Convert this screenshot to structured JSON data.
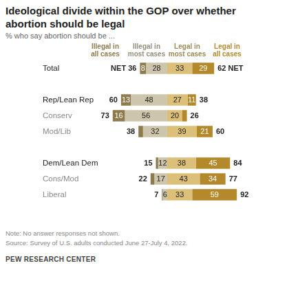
{
  "chart_data": {
    "type": "bar",
    "title": "Ideological divide within the GOP over whether abortion should be legal",
    "subtitle": "% who say abortion should be ...",
    "note": "Note: No answer responses not shown.",
    "source": "Source: Survey of U.S. adults conducted June 27-July 4, 2022.",
    "credit": "PEW RESEARCH CENTER",
    "orientation": "horizontal",
    "stacked": true,
    "grid": false,
    "legend": "top",
    "data_labels": true,
    "tick_labels": "y",
    "xlim": [
      -80,
      100
    ],
    "categories": [
      "Total",
      null,
      "Rep/Lean Rep",
      "Conserv",
      "Mod/Lib",
      null,
      "Dem/Lean Dem",
      "Cons/Mod",
      "Liberal"
    ],
    "series": [
      {
        "name": "Illegal in all cases",
        "color": "#8d7b4c",
        "values": [
          8,
          null,
          13,
          16,
          6,
          null,
          3,
          5,
          1
        ],
        "value_labels": [
          "8",
          null,
          "13",
          "16",
          null,
          null,
          null,
          null,
          null
        ]
      },
      {
        "name": "Illegal in most cases",
        "color": "#cdc5ac",
        "values": [
          28,
          null,
          48,
          56,
          32,
          null,
          12,
          17,
          6
        ],
        "value_labels": [
          "28",
          null,
          "48",
          "56",
          "32",
          null,
          "12",
          "17",
          "6"
        ]
      },
      {
        "name": "Legal in most cases",
        "color": "#dcbf78",
        "values": [
          33,
          null,
          27,
          20,
          39,
          null,
          38,
          43,
          33
        ],
        "value_labels": [
          "33",
          null,
          "27",
          "20",
          "39",
          null,
          "38",
          "43",
          "33"
        ]
      },
      {
        "name": "Legal in all cases",
        "color": "#b3892c",
        "values": [
          29,
          null,
          11,
          6,
          21,
          null,
          45,
          34,
          59
        ],
        "value_labels": [
          "29",
          null,
          "11",
          null,
          "21",
          null,
          "45",
          "34",
          "59"
        ]
      }
    ],
    "net_illegal": {
      "values": [
        36,
        null,
        60,
        73,
        38,
        null,
        15,
        22,
        7
      ],
      "value_labels": [
        "NET 36",
        null,
        "60",
        "73",
        "38",
        null,
        "15",
        "22",
        "7"
      ]
    },
    "net_legal": {
      "values": [
        62,
        null,
        38,
        26,
        60,
        null,
        84,
        77,
        92
      ],
      "value_labels": [
        "62 NET",
        null,
        "38",
        "26",
        "60",
        null,
        "84",
        "77",
        "92"
      ]
    }
  }
}
